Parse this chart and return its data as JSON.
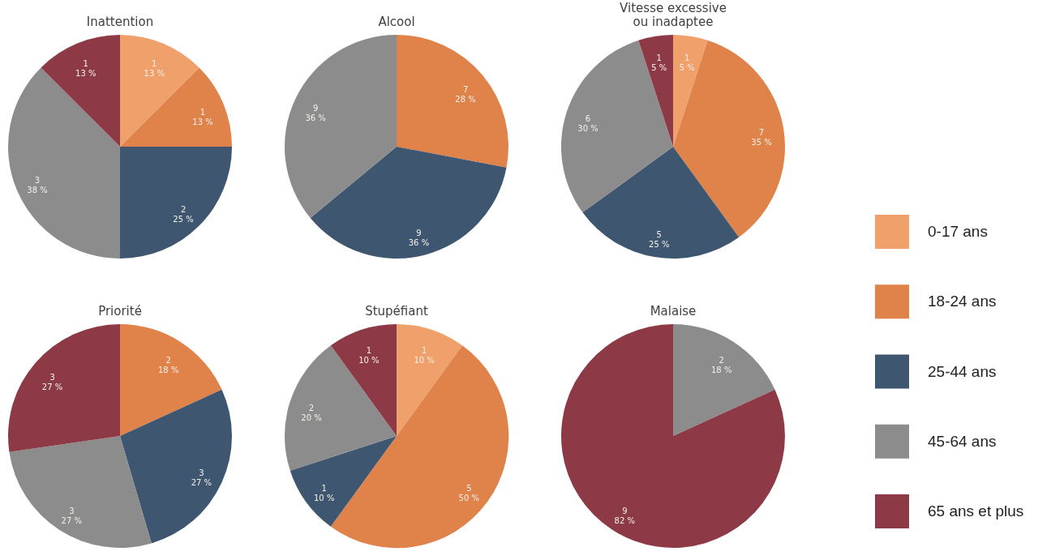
{
  "chart_data": [
    {
      "type": "pie",
      "title": "Inattention",
      "categories": [
        "0-17 ans",
        "18-24 ans",
        "25-44 ans",
        "45-64 ans",
        "65 ans et plus"
      ],
      "values": [
        1,
        1,
        2,
        3,
        1
      ],
      "colors": [
        "#f0a06a",
        "#e0834a",
        "#3f5670",
        "#8c8c8c",
        "#8e3a46"
      ],
      "value_labels": [
        "1\n13 %",
        "1\n13 %",
        "2\n25 %",
        "3\n38 %",
        "1\n13 %"
      ],
      "legend": "right"
    },
    {
      "type": "pie",
      "title": "Alcool",
      "categories": [
        null,
        null,
        null
      ],
      "values": [
        7,
        9,
        9
      ],
      "colors": [
        "#e0834a",
        "#3f5670",
        "#8c8c8c"
      ],
      "value_labels": [
        "7\n28 %",
        "9\n36 %",
        "9\n36 %"
      ]
    },
    {
      "type": "pie",
      "title": "Vitesse excessive\nou inadaptee",
      "categories": [
        null,
        null,
        null,
        null,
        null
      ],
      "values": [
        1,
        7,
        5,
        6,
        1
      ],
      "colors": [
        "#f0a06a",
        "#e0834a",
        "#3f5670",
        "#8c8c8c",
        "#8e3a46"
      ],
      "value_labels": [
        "1\n5 %",
        "7\n35 %",
        "5\n25 %",
        "6\n30 %",
        "1\n5 %"
      ]
    },
    {
      "type": "pie",
      "title": "Priorité",
      "categories": [
        null,
        null,
        null,
        null
      ],
      "values": [
        2,
        3,
        3,
        3
      ],
      "colors": [
        "#e0834a",
        "#3f5670",
        "#8c8c8c",
        "#8e3a46"
      ],
      "value_labels": [
        "2\n18 %",
        "3\n27 %",
        "3\n27 %",
        "3\n27 %"
      ]
    },
    {
      "type": "pie",
      "title": "Stupéfiant",
      "categories": [
        null,
        null,
        null,
        null,
        null
      ],
      "values": [
        1,
        5,
        1,
        2,
        1
      ],
      "colors": [
        "#f0a06a",
        "#e0834a",
        "#3f5670",
        "#8c8c8c",
        "#8e3a46"
      ],
      "value_labels": [
        "1\n10 %",
        "5\n50 %",
        "1\n10 %",
        "2\n20 %",
        "1\n10 %"
      ]
    },
    {
      "type": "pie",
      "title": "Malaise",
      "categories": [
        null,
        null
      ],
      "values": [
        2,
        9
      ],
      "colors": [
        "#8c8c8c",
        "#8e3a46"
      ],
      "value_labels": [
        "2\n18 %",
        "9\n82 %"
      ]
    }
  ]
}
